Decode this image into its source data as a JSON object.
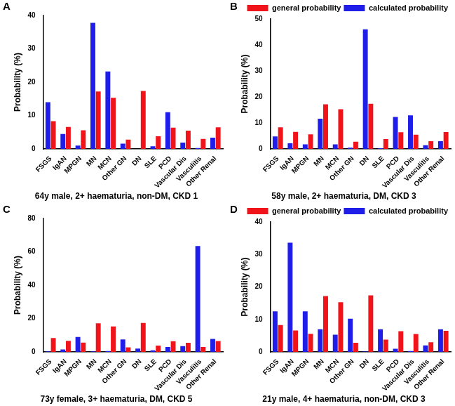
{
  "chart_data": [
    {
      "type": "bar",
      "panel": "A",
      "title": "64y male, 2+ haematuria, non-DM, CKD 1",
      "y_label": "Probability (%)",
      "categories": [
        "FSGS",
        "IgAN",
        "MPGN",
        "MN",
        "MCN",
        "Other GN",
        "DN",
        "SLE",
        "PCD",
        "Vascular Dis",
        "Vasculitis",
        "Other Renal"
      ],
      "series": [
        {
          "name": "calculated probability",
          "color": "#1e1ee8",
          "values": [
            14,
            4.5,
            1,
            37.8,
            23.2,
            1.6,
            0,
            0.8,
            11,
            1.9,
            0.3,
            3.4
          ]
        },
        {
          "name": "general probability",
          "color": "#f0141a",
          "values": [
            8.3,
            6.6,
            5.6,
            17.2,
            15.3,
            2.8,
            17.4,
            3.8,
            6.4,
            5.5,
            3.0,
            6.5
          ]
        }
      ],
      "ylim": [
        0,
        40
      ],
      "yticks": [
        0,
        10,
        20,
        30,
        40
      ],
      "grid": false
    },
    {
      "type": "bar",
      "panel": "B",
      "title": "58y male, 2+ haematuria, DM, CKD 3",
      "y_label": "Probability (%)",
      "categories": [
        "FSGS",
        "IgAN",
        "MPGN",
        "MN",
        "MCN",
        "Other GN",
        "DN",
        "SLE",
        "PCD",
        "Vascular Dis",
        "Vasculitis",
        "Other Renal"
      ],
      "series": [
        {
          "name": "calculated probability",
          "color": "#1e1ee8",
          "values": [
            4.8,
            2.2,
            1.8,
            11.6,
            1.8,
            0.5,
            46,
            0.3,
            12.3,
            12.9,
            1.4,
            3.0
          ]
        },
        {
          "name": "general probability",
          "color": "#f0141a",
          "values": [
            8.3,
            6.6,
            5.6,
            17.2,
            15.3,
            2.8,
            17.4,
            3.8,
            6.4,
            5.5,
            3.0,
            6.5
          ]
        }
      ],
      "ylim": [
        0,
        50
      ],
      "yticks": [
        0,
        10,
        20,
        30,
        40,
        50
      ],
      "grid": false,
      "legend": "top-right"
    },
    {
      "type": "bar",
      "panel": "C",
      "title": "73y female, 3+ haematuria, DM, CKD 5",
      "y_label": "Probability (%)",
      "categories": [
        "FSGS",
        "IgAN",
        "MPGN",
        "MN",
        "MCN",
        "Other GN",
        "DN",
        "SLE",
        "PCD",
        "Vascular Dis",
        "Vasculitis",
        "Other Renal"
      ],
      "series": [
        {
          "name": "calculated probability",
          "color": "#1e1ee8",
          "values": [
            0.3,
            1.5,
            9,
            0.3,
            0.5,
            7.5,
            2,
            1,
            3,
            3.5,
            63.5,
            7.8
          ]
        },
        {
          "name": "general probability",
          "color": "#f0141a",
          "values": [
            8.3,
            6.6,
            5.6,
            17.2,
            15.3,
            2.8,
            17.4,
            3.8,
            6.4,
            5.5,
            3.0,
            6.5
          ]
        }
      ],
      "ylim": [
        0,
        80
      ],
      "yticks": [
        0,
        20,
        40,
        60,
        80
      ],
      "grid": false
    },
    {
      "type": "bar",
      "panel": "D",
      "title": "21y male, 4+ haematuria, non-DM, CKD 3",
      "y_label": "Probability (%)",
      "categories": [
        "FSGS",
        "IgAN",
        "MPGN",
        "MN",
        "MCN",
        "Other GN",
        "DN",
        "SLE",
        "PCD",
        "Vascular Dis",
        "Vasculitis",
        "Other Renal"
      ],
      "series": [
        {
          "name": "calculated probability",
          "color": "#1e1ee8",
          "values": [
            12.5,
            33.6,
            12.5,
            7,
            5.3,
            10.2,
            0.1,
            7,
            1,
            0.3,
            2,
            7
          ]
        },
        {
          "name": "general probability",
          "color": "#f0141a",
          "values": [
            8.3,
            6.6,
            5.6,
            17.2,
            15.3,
            2.8,
            17.4,
            3.8,
            6.4,
            5.5,
            3.0,
            6.5
          ]
        }
      ],
      "ylim": [
        0,
        40
      ],
      "yticks": [
        0,
        10,
        20,
        30,
        40
      ],
      "grid": false,
      "legend": "top-right"
    }
  ]
}
